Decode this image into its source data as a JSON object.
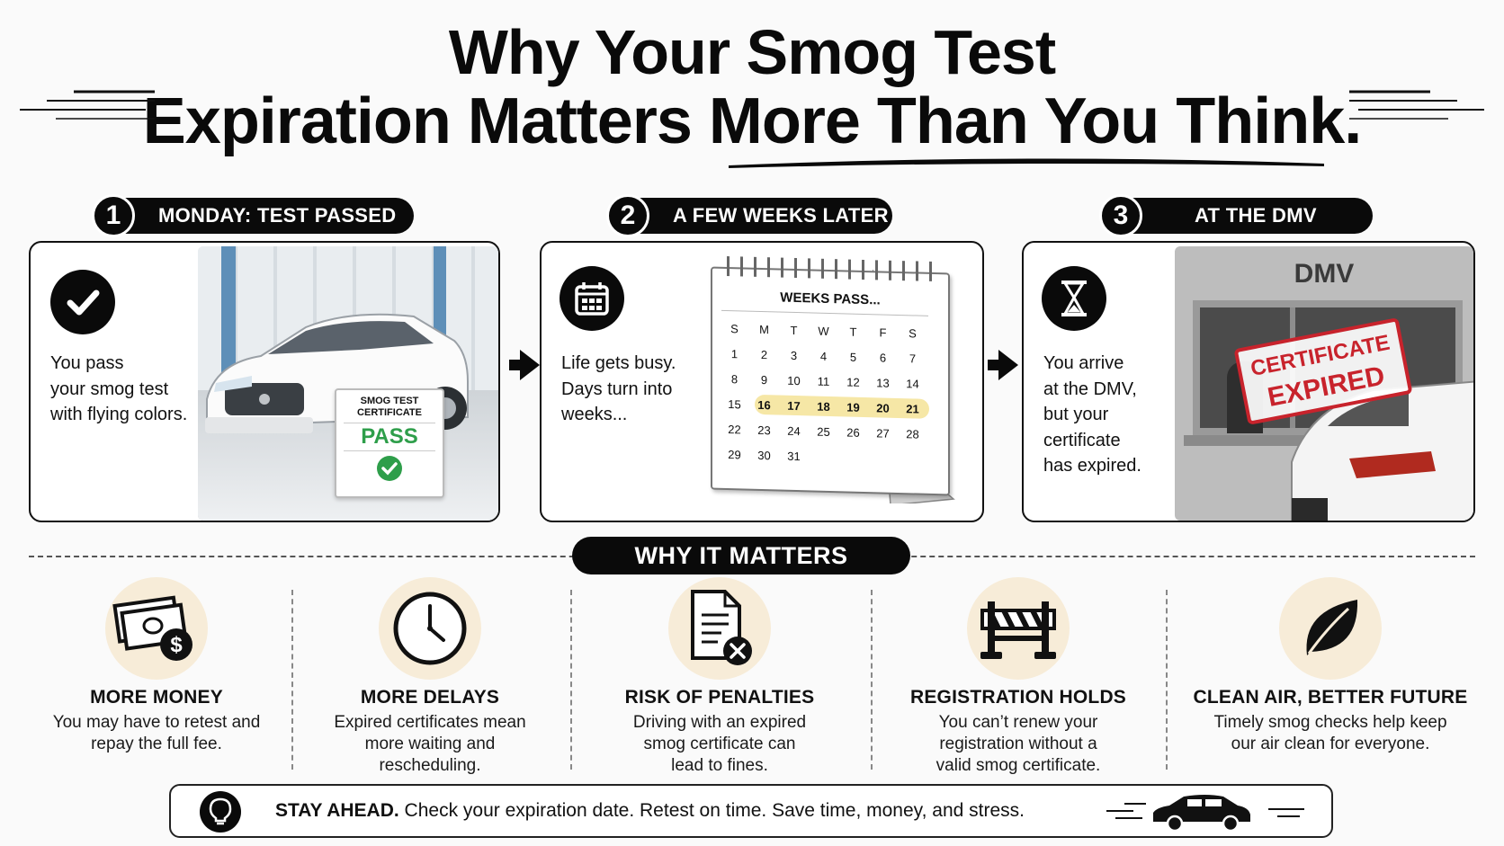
{
  "header": {
    "title_line1": "Why Your Smog Test",
    "title_line2": "Expiration Matters More Than You Think."
  },
  "steps": [
    {
      "number": "1",
      "label": "MONDAY: TEST PASSED",
      "text_lines": [
        "You pass",
        "your smog test",
        "with flying colors."
      ],
      "icon": "checkmark-icon",
      "certificate": {
        "title_line1": "SMOG TEST",
        "title_line2": "CERTIFICATE",
        "status": "PASS"
      }
    },
    {
      "number": "2",
      "label": "A FEW WEEKS LATER",
      "text_lines": [
        "Life gets busy.",
        "Days turn into",
        "weeks..."
      ],
      "icon": "calendar-icon",
      "calendar": {
        "title": "WEEKS PASS...",
        "weekdays": [
          "S",
          "M",
          "T",
          "W",
          "T",
          "F",
          "S"
        ],
        "weeks": [
          [
            "1",
            "2",
            "3",
            "4",
            "5",
            "6",
            "7"
          ],
          [
            "8",
            "9",
            "10",
            "11",
            "12",
            "13",
            "14"
          ],
          [
            "15",
            "16",
            "17",
            "18",
            "19",
            "20",
            "21"
          ],
          [
            "22",
            "23",
            "24",
            "25",
            "26",
            "27",
            "28"
          ],
          [
            "29",
            "30",
            "31"
          ]
        ],
        "highlighted": [
          "16",
          "17",
          "18",
          "19",
          "20",
          "21"
        ],
        "highlight_color": "#f6e7a6"
      }
    },
    {
      "number": "3",
      "label": "AT THE DMV",
      "text_lines": [
        "You arrive",
        "at the DMV,",
        "but your",
        "certificate",
        "has expired."
      ],
      "icon": "hourglass-icon",
      "building_sign": "DMV",
      "stamp": {
        "line1": "CERTIFICATE",
        "line2": "EXPIRED",
        "color": "#c8232c"
      }
    }
  ],
  "why_it_matters": {
    "heading": "WHY IT MATTERS",
    "items": [
      {
        "icon": "money-icon",
        "title": "MORE MONEY",
        "text_lines": [
          "You may have to retest and",
          "repay the full fee."
        ]
      },
      {
        "icon": "clock-icon",
        "title": "MORE DELAYS",
        "text_lines": [
          "Expired certificates mean",
          "more waiting and",
          "rescheduling."
        ]
      },
      {
        "icon": "document-x-icon",
        "title": "RISK OF PENALTIES",
        "text_lines": [
          "Driving with an expired",
          "smog certificate can",
          "lead to fines."
        ]
      },
      {
        "icon": "barrier-icon",
        "title": "REGISTRATION HOLDS",
        "text_lines": [
          "You can’t renew your",
          "registration without a",
          "valid smog certificate."
        ]
      },
      {
        "icon": "leaf-icon",
        "title": "CLEAN AIR, BETTER FUTURE",
        "text_lines": [
          "Timely smog checks help keep",
          "our air clean for everyone."
        ]
      }
    ]
  },
  "footer": {
    "bold": "STAY AHEAD.",
    "text": "Check your expiration date. Retest on time. Save time, money, and stress.",
    "icon": "lightbulb-icon",
    "car_icon": "car-icon"
  },
  "colors": {
    "accent_black": "#0a0a0a",
    "icon_bg": "#f7ecd8",
    "pass_green": "#2e9e4a",
    "stamp_red": "#c8232c"
  }
}
